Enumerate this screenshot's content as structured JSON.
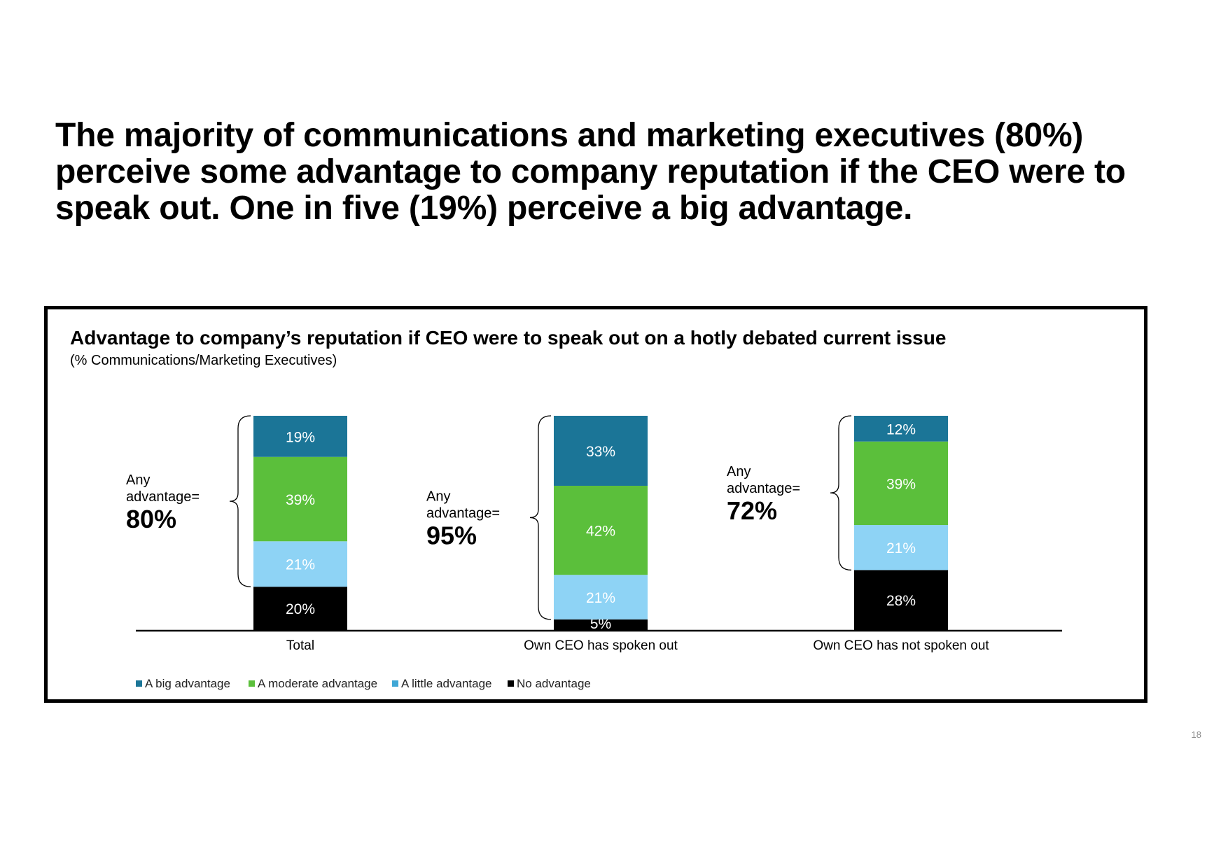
{
  "headline": "The majority of communications and marketing executives (80%) perceive some advantage to company reputation if the CEO were to speak out. One in five (19%) perceive a big advantage.",
  "page_number": "18",
  "colors": {
    "big": "#1b7597",
    "moderate": "#5bbf3b",
    "little": "#8ed3f5",
    "none": "#000000",
    "legend_little": "#3fa7d6"
  },
  "chart_data": {
    "type": "bar",
    "stacked": true,
    "title": "Advantage to company’s reputation if CEO were to speak out on a hotly debated current issue",
    "subtitle": "(% Communications/Marketing Executives)",
    "categories": [
      "Total",
      "Own CEO has spoken out",
      "Own CEO has not spoken out"
    ],
    "series": [
      {
        "name": "A big advantage",
        "color_key": "big",
        "values": [
          19,
          33,
          12
        ]
      },
      {
        "name": "A moderate advantage",
        "color_key": "moderate",
        "values": [
          39,
          42,
          39
        ]
      },
      {
        "name": "A little advantage",
        "color_key": "little",
        "legend_color_key": "legend_little",
        "values": [
          21,
          21,
          21
        ]
      },
      {
        "name": "No advantage",
        "color_key": "none",
        "values": [
          20,
          5,
          28
        ]
      }
    ],
    "value_labels": [
      [
        "19%",
        "33%",
        "12%"
      ],
      [
        "39%",
        "42%",
        "39%"
      ],
      [
        "21%",
        "21%",
        "21%"
      ],
      [
        "20%",
        "5%",
        "28%"
      ]
    ],
    "annotations": [
      {
        "line1": "Any",
        "line2": "advantage=",
        "value": "80%"
      },
      {
        "line1": "Any",
        "line2": "advantage=",
        "value": "95%"
      },
      {
        "line1": "Any",
        "line2": "advantage=",
        "value": "72%"
      }
    ],
    "ylim": [
      0,
      100
    ],
    "legend_position": "bottom-left"
  }
}
